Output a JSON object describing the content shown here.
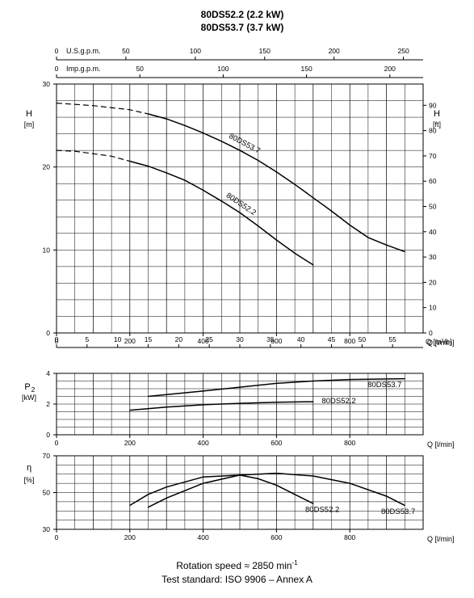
{
  "title": {
    "line1": "80DS52.2 (2.2 kW)",
    "line2": "80DS53.7 (3.7 kW)"
  },
  "footer": {
    "rotation": "Rotation speed ≈ 2850 min",
    "rotation_sup": "-1",
    "standard": "Test standard: ISO 9906 – Annex A"
  },
  "chart_data": [
    {
      "type": "line",
      "title": "",
      "xlabel": "Q [l/min]",
      "ylabel": "H [m]",
      "y2label": "H [ft]",
      "xlim": [
        0,
        1000
      ],
      "ylim": [
        0,
        30
      ],
      "y2lim": [
        0,
        98.4
      ],
      "x_ticks": [
        0,
        200,
        400,
        600,
        800
      ],
      "y_ticks": [
        0,
        10,
        20,
        30
      ],
      "y2_ticks": [
        0,
        10,
        20,
        30,
        40,
        50,
        60,
        70,
        80,
        90
      ],
      "grid": true,
      "top_axes": [
        {
          "label": "U.S.g.p.m.",
          "ticks": [
            0,
            50,
            100,
            150,
            200,
            250
          ],
          "factor": 3.785
        },
        {
          "label": "Imp.g.p.m.",
          "ticks": [
            0,
            50,
            100,
            150,
            200
          ],
          "factor": 4.546
        }
      ],
      "bottom_axis2": {
        "label": "Q [m³/h]",
        "ticks": [
          0,
          5,
          10,
          15,
          20,
          25,
          30,
          35,
          40,
          45,
          50,
          55
        ]
      },
      "series": [
        {
          "name": "80DS53.7",
          "dashed_until": 250,
          "x": [
            0,
            100,
            200,
            250,
            300,
            350,
            400,
            450,
            500,
            550,
            600,
            650,
            700,
            750,
            800,
            850,
            900,
            950
          ],
          "y": [
            27.7,
            27.4,
            26.9,
            26.4,
            25.8,
            25.0,
            24.1,
            23.1,
            22.0,
            20.8,
            19.4,
            17.9,
            16.3,
            14.7,
            13.0,
            11.5,
            10.6,
            9.8
          ]
        },
        {
          "name": "80DS52.2",
          "dashed_until": 200,
          "x": [
            0,
            50,
            100,
            150,
            200,
            250,
            300,
            350,
            400,
            450,
            500,
            550,
            600,
            650,
            700
          ],
          "y": [
            22.0,
            21.9,
            21.6,
            21.3,
            20.7,
            20.1,
            19.3,
            18.4,
            17.2,
            15.9,
            14.5,
            12.9,
            11.2,
            9.6,
            8.2
          ]
        }
      ]
    },
    {
      "type": "line",
      "title": "",
      "xlabel": "Q [l/min]",
      "ylabel": "P₂ [kW]",
      "xlim": [
        0,
        1000
      ],
      "ylim": [
        0,
        4
      ],
      "x_ticks": [
        0,
        200,
        400,
        600,
        800
      ],
      "y_ticks": [
        0,
        2,
        4
      ],
      "grid": true,
      "series": [
        {
          "name": "80DS53.7",
          "x": [
            250,
            400,
            500,
            600,
            700,
            800,
            950
          ],
          "y": [
            2.5,
            2.85,
            3.1,
            3.35,
            3.5,
            3.6,
            3.65
          ]
        },
        {
          "name": "80DS52.2",
          "x": [
            200,
            300,
            400,
            500,
            600,
            700
          ],
          "y": [
            1.6,
            1.8,
            1.95,
            2.05,
            2.12,
            2.15
          ]
        }
      ]
    },
    {
      "type": "line",
      "title": "",
      "xlabel": "Q [l/min]",
      "ylabel": "η [%]",
      "xlim": [
        0,
        1000
      ],
      "ylim": [
        30,
        70
      ],
      "x_ticks": [
        0,
        200,
        400,
        600,
        800
      ],
      "y_ticks": [
        30,
        50,
        70
      ],
      "grid": true,
      "series": [
        {
          "name": "80DS53.7",
          "x": [
            250,
            300,
            400,
            500,
            600,
            700,
            800,
            900,
            950
          ],
          "y": [
            42,
            47,
            55,
            59.5,
            60.5,
            59,
            55,
            48,
            43
          ]
        },
        {
          "name": "80DS52.2",
          "x": [
            200,
            250,
            300,
            400,
            500,
            550,
            600,
            650,
            700
          ],
          "y": [
            43,
            49,
            53,
            58.5,
            59.5,
            57.5,
            54,
            49,
            44
          ]
        }
      ]
    }
  ]
}
